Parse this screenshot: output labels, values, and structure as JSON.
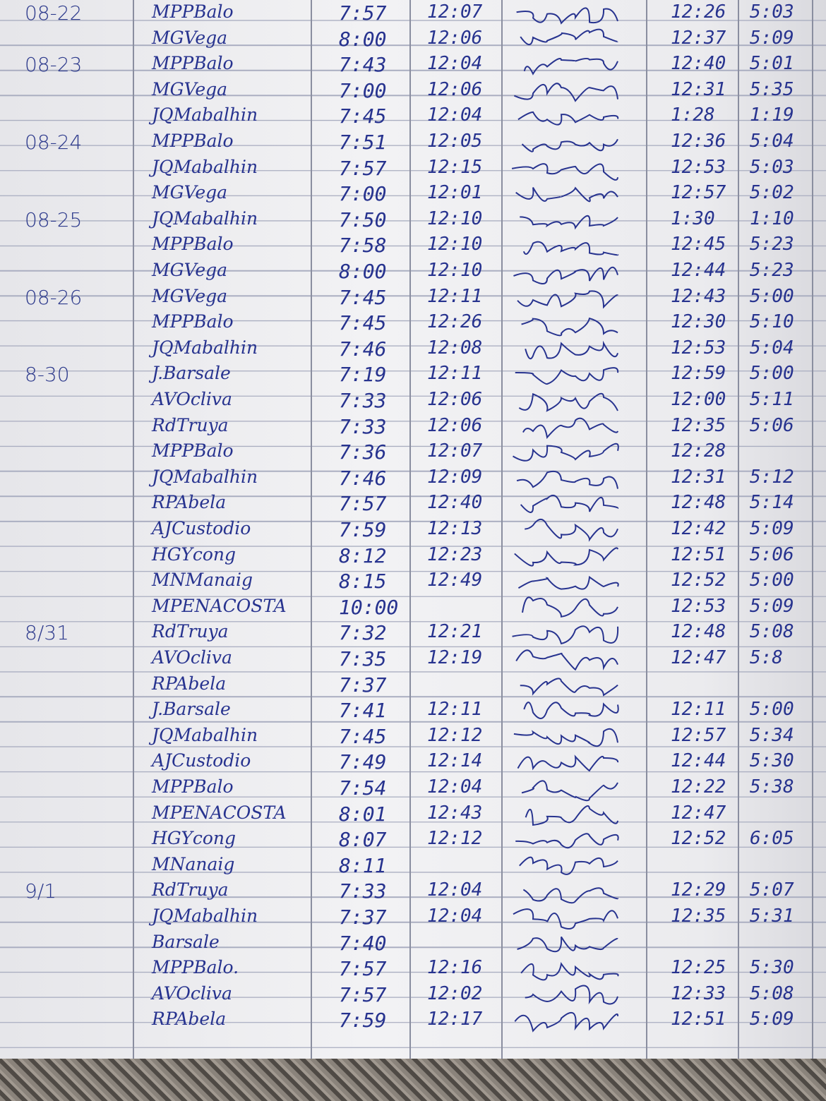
{
  "ink_color": "#27338f",
  "rows": [
    {
      "date": "08-22",
      "name": "MPPBalo",
      "in": "7:57",
      "out": "12:07",
      "pm_in": "12:26",
      "pm_out": "5:03"
    },
    {
      "date": "",
      "name": "MGVega",
      "in": "8:00",
      "out": "12:06",
      "pm_in": "12:37",
      "pm_out": "5:09"
    },
    {
      "date": "08-23",
      "name": "MPPBalo",
      "in": "7:43",
      "out": "12:04",
      "pm_in": "12:40",
      "pm_out": "5:01"
    },
    {
      "date": "",
      "name": "MGVega",
      "in": "7:00",
      "out": "12:06",
      "pm_in": "12:31",
      "pm_out": "5:35"
    },
    {
      "date": "",
      "name": "JQMabalhin",
      "in": "7:45",
      "out": "12:04",
      "pm_in": "1:28",
      "pm_out": "1:19"
    },
    {
      "date": "08-24",
      "name": "MPPBalo",
      "in": "7:51",
      "out": "12:05",
      "pm_in": "12:36",
      "pm_out": "5:04"
    },
    {
      "date": "",
      "name": "JQMabalhin",
      "in": "7:57",
      "out": "12:15",
      "pm_in": "12:53",
      "pm_out": "5:03"
    },
    {
      "date": "",
      "name": "MGVega",
      "in": "7:00",
      "out": "12:01",
      "pm_in": "12:57",
      "pm_out": "5:02"
    },
    {
      "date": "08-25",
      "name": "JQMabalhin",
      "in": "7:50",
      "out": "12:10",
      "pm_in": "1:30",
      "pm_out": "1:10"
    },
    {
      "date": "",
      "name": "MPPBalo",
      "in": "7:58",
      "out": "12:10",
      "pm_in": "12:45",
      "pm_out": "5:23"
    },
    {
      "date": "",
      "name": "MGVega",
      "in": "8:00",
      "out": "12:10",
      "pm_in": "12:44",
      "pm_out": "5:23"
    },
    {
      "date": "08-26",
      "name": "MGVega",
      "in": "7:45",
      "out": "12:11",
      "pm_in": "12:43",
      "pm_out": "5:00"
    },
    {
      "date": "",
      "name": "MPPBalo",
      "in": "7:45",
      "out": "12:26",
      "pm_in": "12:30",
      "pm_out": "5:10"
    },
    {
      "date": "",
      "name": "JQMabalhin",
      "in": "7:46",
      "out": "12:08",
      "pm_in": "12:53",
      "pm_out": "5:04"
    },
    {
      "date": "8-30",
      "name": "J.Barsale",
      "in": "7:19",
      "out": "12:11",
      "pm_in": "12:59",
      "pm_out": "5:00"
    },
    {
      "date": "",
      "name": "AVOcliva",
      "in": "7:33",
      "out": "12:06",
      "pm_in": "12:00",
      "pm_out": "5:11"
    },
    {
      "date": "",
      "name": "RdTruya",
      "in": "7:33",
      "out": "12:06",
      "pm_in": "12:35",
      "pm_out": "5:06"
    },
    {
      "date": "",
      "name": "MPPBalo",
      "in": "7:36",
      "out": "12:07",
      "pm_in": "12:28",
      "pm_out": ""
    },
    {
      "date": "",
      "name": "JQMabalhin",
      "in": "7:46",
      "out": "12:09",
      "pm_in": "12:31",
      "pm_out": "5:12"
    },
    {
      "date": "",
      "name": "RPAbela",
      "in": "7:57",
      "out": "12:40",
      "pm_in": "12:48",
      "pm_out": "5:14"
    },
    {
      "date": "",
      "name": "AJCustodio",
      "in": "7:59",
      "out": "12:13",
      "pm_in": "12:42",
      "pm_out": "5:09"
    },
    {
      "date": "",
      "name": "HGYcong",
      "in": "8:12",
      "out": "12:23",
      "pm_in": "12:51",
      "pm_out": "5:06"
    },
    {
      "date": "",
      "name": "MNManaig",
      "in": "8:15",
      "out": "12:49",
      "pm_in": "12:52",
      "pm_out": "5:00"
    },
    {
      "date": "",
      "name": "MPENACOSTA",
      "in": "10:00",
      "out": "",
      "pm_in": "12:53",
      "pm_out": "5:09"
    },
    {
      "date": "8/31",
      "name": "RdTruya",
      "in": "7:32",
      "out": "12:21",
      "pm_in": "12:48",
      "pm_out": "5:08"
    },
    {
      "date": "",
      "name": "AVOcliva",
      "in": "7:35",
      "out": "12:19",
      "pm_in": "12:47",
      "pm_out": "5:8"
    },
    {
      "date": "",
      "name": "RPAbela",
      "in": "7:37",
      "out": "",
      "pm_in": "",
      "pm_out": ""
    },
    {
      "date": "",
      "name": "J.Barsale",
      "in": "7:41",
      "out": "12:11",
      "pm_in": "12:11",
      "pm_out": "5:00"
    },
    {
      "date": "",
      "name": "JQMabalhin",
      "in": "7:45",
      "out": "12:12",
      "pm_in": "12:57",
      "pm_out": "5:34"
    },
    {
      "date": "",
      "name": "AJCustodio",
      "in": "7:49",
      "out": "12:14",
      "pm_in": "12:44",
      "pm_out": "5:30"
    },
    {
      "date": "",
      "name": "MPPBalo",
      "in": "7:54",
      "out": "12:04",
      "pm_in": "12:22",
      "pm_out": "5:38"
    },
    {
      "date": "",
      "name": "MPENACOSTA",
      "in": "8:01",
      "out": "12:43",
      "pm_in": "12:47",
      "pm_out": ""
    },
    {
      "date": "",
      "name": "HGYcong",
      "in": "8:07",
      "out": "12:12",
      "pm_in": "12:52",
      "pm_out": "6:05"
    },
    {
      "date": "",
      "name": "MNanaig",
      "in": "8:11",
      "out": "",
      "pm_in": "",
      "pm_out": ""
    },
    {
      "date": "9/1",
      "name": "RdTruya",
      "in": "7:33",
      "out": "12:04",
      "pm_in": "12:29",
      "pm_out": "5:07"
    },
    {
      "date": "",
      "name": "JQMabalhin",
      "in": "7:37",
      "out": "12:04",
      "pm_in": "12:35",
      "pm_out": "5:31"
    },
    {
      "date": "",
      "name": "Barsale",
      "in": "7:40",
      "out": "",
      "pm_in": "",
      "pm_out": ""
    },
    {
      "date": "",
      "name": "MPPBalo.",
      "in": "7:57",
      "out": "12:16",
      "pm_in": "12:25",
      "pm_out": "5:30"
    },
    {
      "date": "",
      "name": "AVOcliva",
      "in": "7:57",
      "out": "12:02",
      "pm_in": "12:33",
      "pm_out": "5:08"
    },
    {
      "date": "",
      "name": "RPAbela",
      "in": "7:59",
      "out": "12:17",
      "pm_in": "12:51",
      "pm_out": "5:09"
    }
  ]
}
